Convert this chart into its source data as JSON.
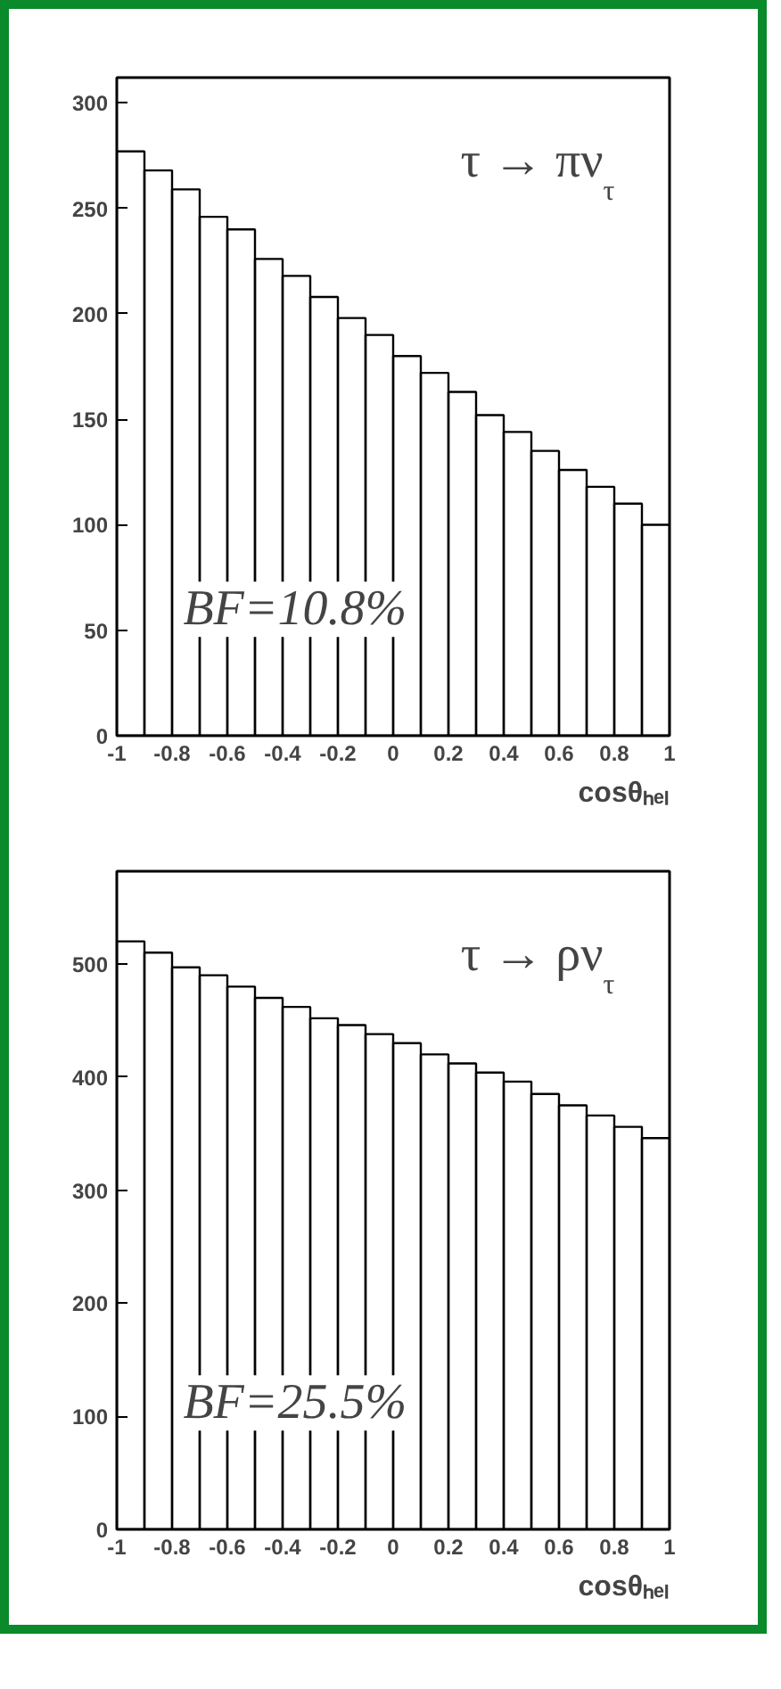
{
  "chart_data": [
    {
      "type": "histogram",
      "xlabel": "cosθₕₑₗ",
      "annotations": [
        "τ → πν$_{τ}$",
        "BF=10.8%"
      ],
      "bins": [
        -1,
        -0.9,
        -0.8,
        -0.7,
        -0.6,
        -0.5,
        -0.4,
        -0.3,
        -0.2,
        -0.1,
        0,
        0.1,
        0.2,
        0.3,
        0.4,
        0.5,
        0.6,
        0.7,
        0.8,
        0.9,
        1
      ],
      "values": [
        277,
        268,
        259,
        246,
        240,
        226,
        218,
        208,
        198,
        190,
        180,
        172,
        163,
        152,
        144,
        135,
        126,
        118,
        110,
        100
      ],
      "color": "#000000",
      "xlim": [
        -1,
        1
      ],
      "ylim": [
        0,
        312
      ],
      "xticks": [
        -1,
        -0.8,
        -0.6,
        -0.4,
        -0.2,
        0,
        0.2,
        0.4,
        0.6,
        0.8,
        1
      ],
      "yticks": [
        0,
        50,
        100,
        150,
        200,
        250,
        300
      ]
    },
    {
      "type": "histogram",
      "xlabel": "cosθₕₑₗ",
      "annotations": [
        "τ → ρν$_{τ}$",
        "BF=25.5%"
      ],
      "bins": [
        -1,
        -0.9,
        -0.8,
        -0.7,
        -0.6,
        -0.5,
        -0.4,
        -0.3,
        -0.2,
        -0.1,
        0,
        0.1,
        0.2,
        0.3,
        0.4,
        0.5,
        0.6,
        0.7,
        0.8,
        0.9,
        1
      ],
      "values": [
        520,
        510,
        497,
        490,
        480,
        470,
        462,
        452,
        446,
        438,
        430,
        420,
        412,
        404,
        396,
        385,
        375,
        366,
        356,
        346
      ],
      "color": "#000000",
      "xlim": [
        -1,
        1
      ],
      "ylim": [
        0,
        582
      ],
      "xticks": [
        -1,
        -0.8,
        -0.6,
        -0.4,
        -0.2,
        0,
        0.2,
        0.4,
        0.6,
        0.8,
        1
      ],
      "yticks": [
        0,
        100,
        200,
        300,
        400,
        500
      ]
    }
  ]
}
